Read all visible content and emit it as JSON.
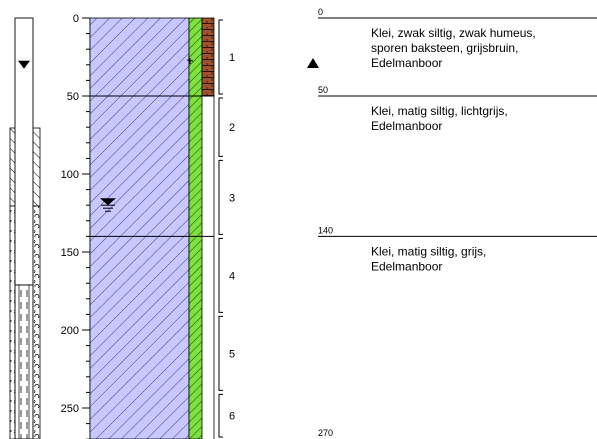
{
  "depth_axis": {
    "ticks": [
      "0",
      "50",
      "100",
      "150",
      "200",
      "250"
    ],
    "max": 270
  },
  "layers": [
    {
      "top": 0,
      "bottom": 50,
      "top_label": "0",
      "lines": [
        "Klei, zwak siltig, zwak humeus,",
        "sporen baksteen, grijsbruin,",
        "Edelmanboor"
      ]
    },
    {
      "top": 50,
      "bottom": 140,
      "top_label": "50",
      "lines": [
        "Klei, matig siltig, lichtgrijs,",
        "Edelmanboor"
      ]
    },
    {
      "top": 140,
      "bottom": 270,
      "top_label": "140",
      "lines": [
        "Klei, matig siltig, grijs,",
        "Edelmanboor"
      ]
    }
  ],
  "end_depth_label": "270",
  "samples": [
    {
      "label": "1",
      "top": 0,
      "bottom": 50
    },
    {
      "label": "2",
      "top": 50,
      "bottom": 90
    },
    {
      "label": "3",
      "top": 90,
      "bottom": 140
    },
    {
      "label": "4",
      "top": 140,
      "bottom": 190
    },
    {
      "label": "5",
      "top": 190,
      "bottom": 240
    },
    {
      "label": "6",
      "top": 240,
      "bottom": 270
    }
  ],
  "groundwater": {
    "well_level": 30,
    "boring_level": 120,
    "colors": {
      "soil_fill": "#c8c8ff",
      "hatch": "#3a3a8c",
      "strip_green": "#7fe040",
      "strip_brown": "#a0522d"
    }
  }
}
